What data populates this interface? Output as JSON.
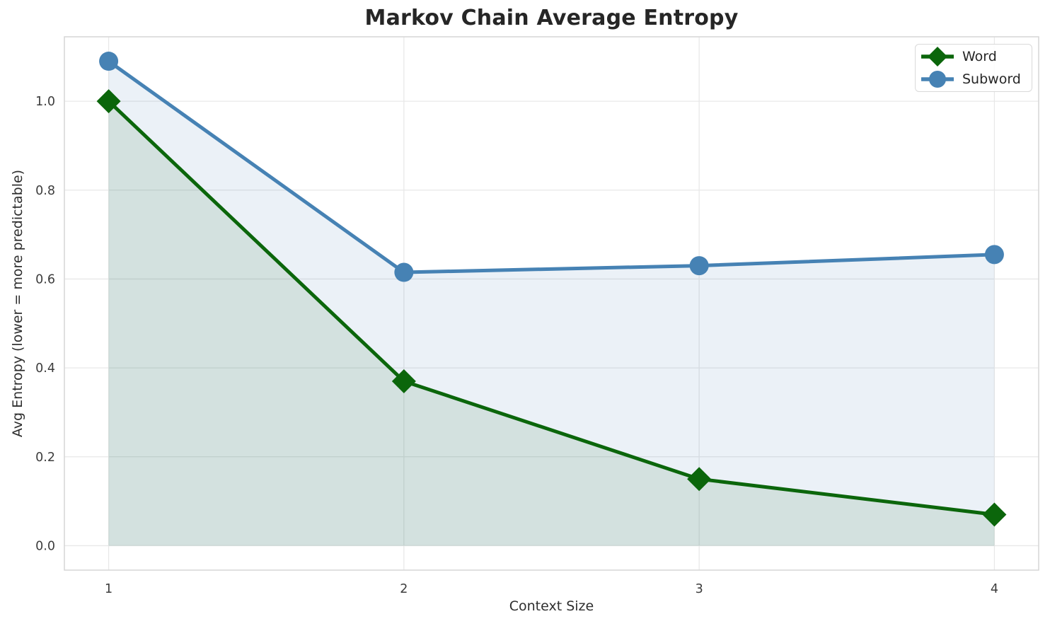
{
  "chart_data": {
    "type": "line",
    "title": "Markov Chain Average Entropy",
    "xlabel": "Context Size",
    "ylabel": "Avg Entropy (lower = more predictable)",
    "x": [
      1,
      2,
      3,
      4
    ],
    "series": [
      {
        "name": "Word",
        "values": [
          1.0,
          0.37,
          0.15,
          0.07
        ],
        "color": "#0b660b",
        "marker": "diamond",
        "area_fill": true
      },
      {
        "name": "Subword",
        "values": [
          1.09,
          0.615,
          0.63,
          0.655
        ],
        "color": "#4682b4",
        "marker": "circle",
        "area_fill": true
      }
    ],
    "xlim": [
      0.85,
      4.15
    ],
    "ylim": [
      -0.055,
      1.145
    ],
    "xticks": [
      1,
      2,
      3,
      4
    ],
    "xtick_labels": [
      "1",
      "2",
      "3",
      "4"
    ],
    "yticks": [
      0,
      0.2,
      0.4,
      0.6,
      0.8,
      1.0
    ],
    "ytick_labels": [
      "0.0",
      "0.2",
      "0.4",
      "0.6",
      "0.8",
      "1.0"
    ],
    "grid": true,
    "legend_position": "upper right",
    "fill_alpha": 0.11,
    "fill_baseline": 0
  },
  "styles": {
    "grid_color": "#e8e8e8",
    "spine_color": "#d6d6d6",
    "title_color": "#262626",
    "tick_color": "#3c3c3c",
    "background": "#ffffff",
    "line_width": 5,
    "diamond_half": 17,
    "circle_radius": 13.5
  }
}
